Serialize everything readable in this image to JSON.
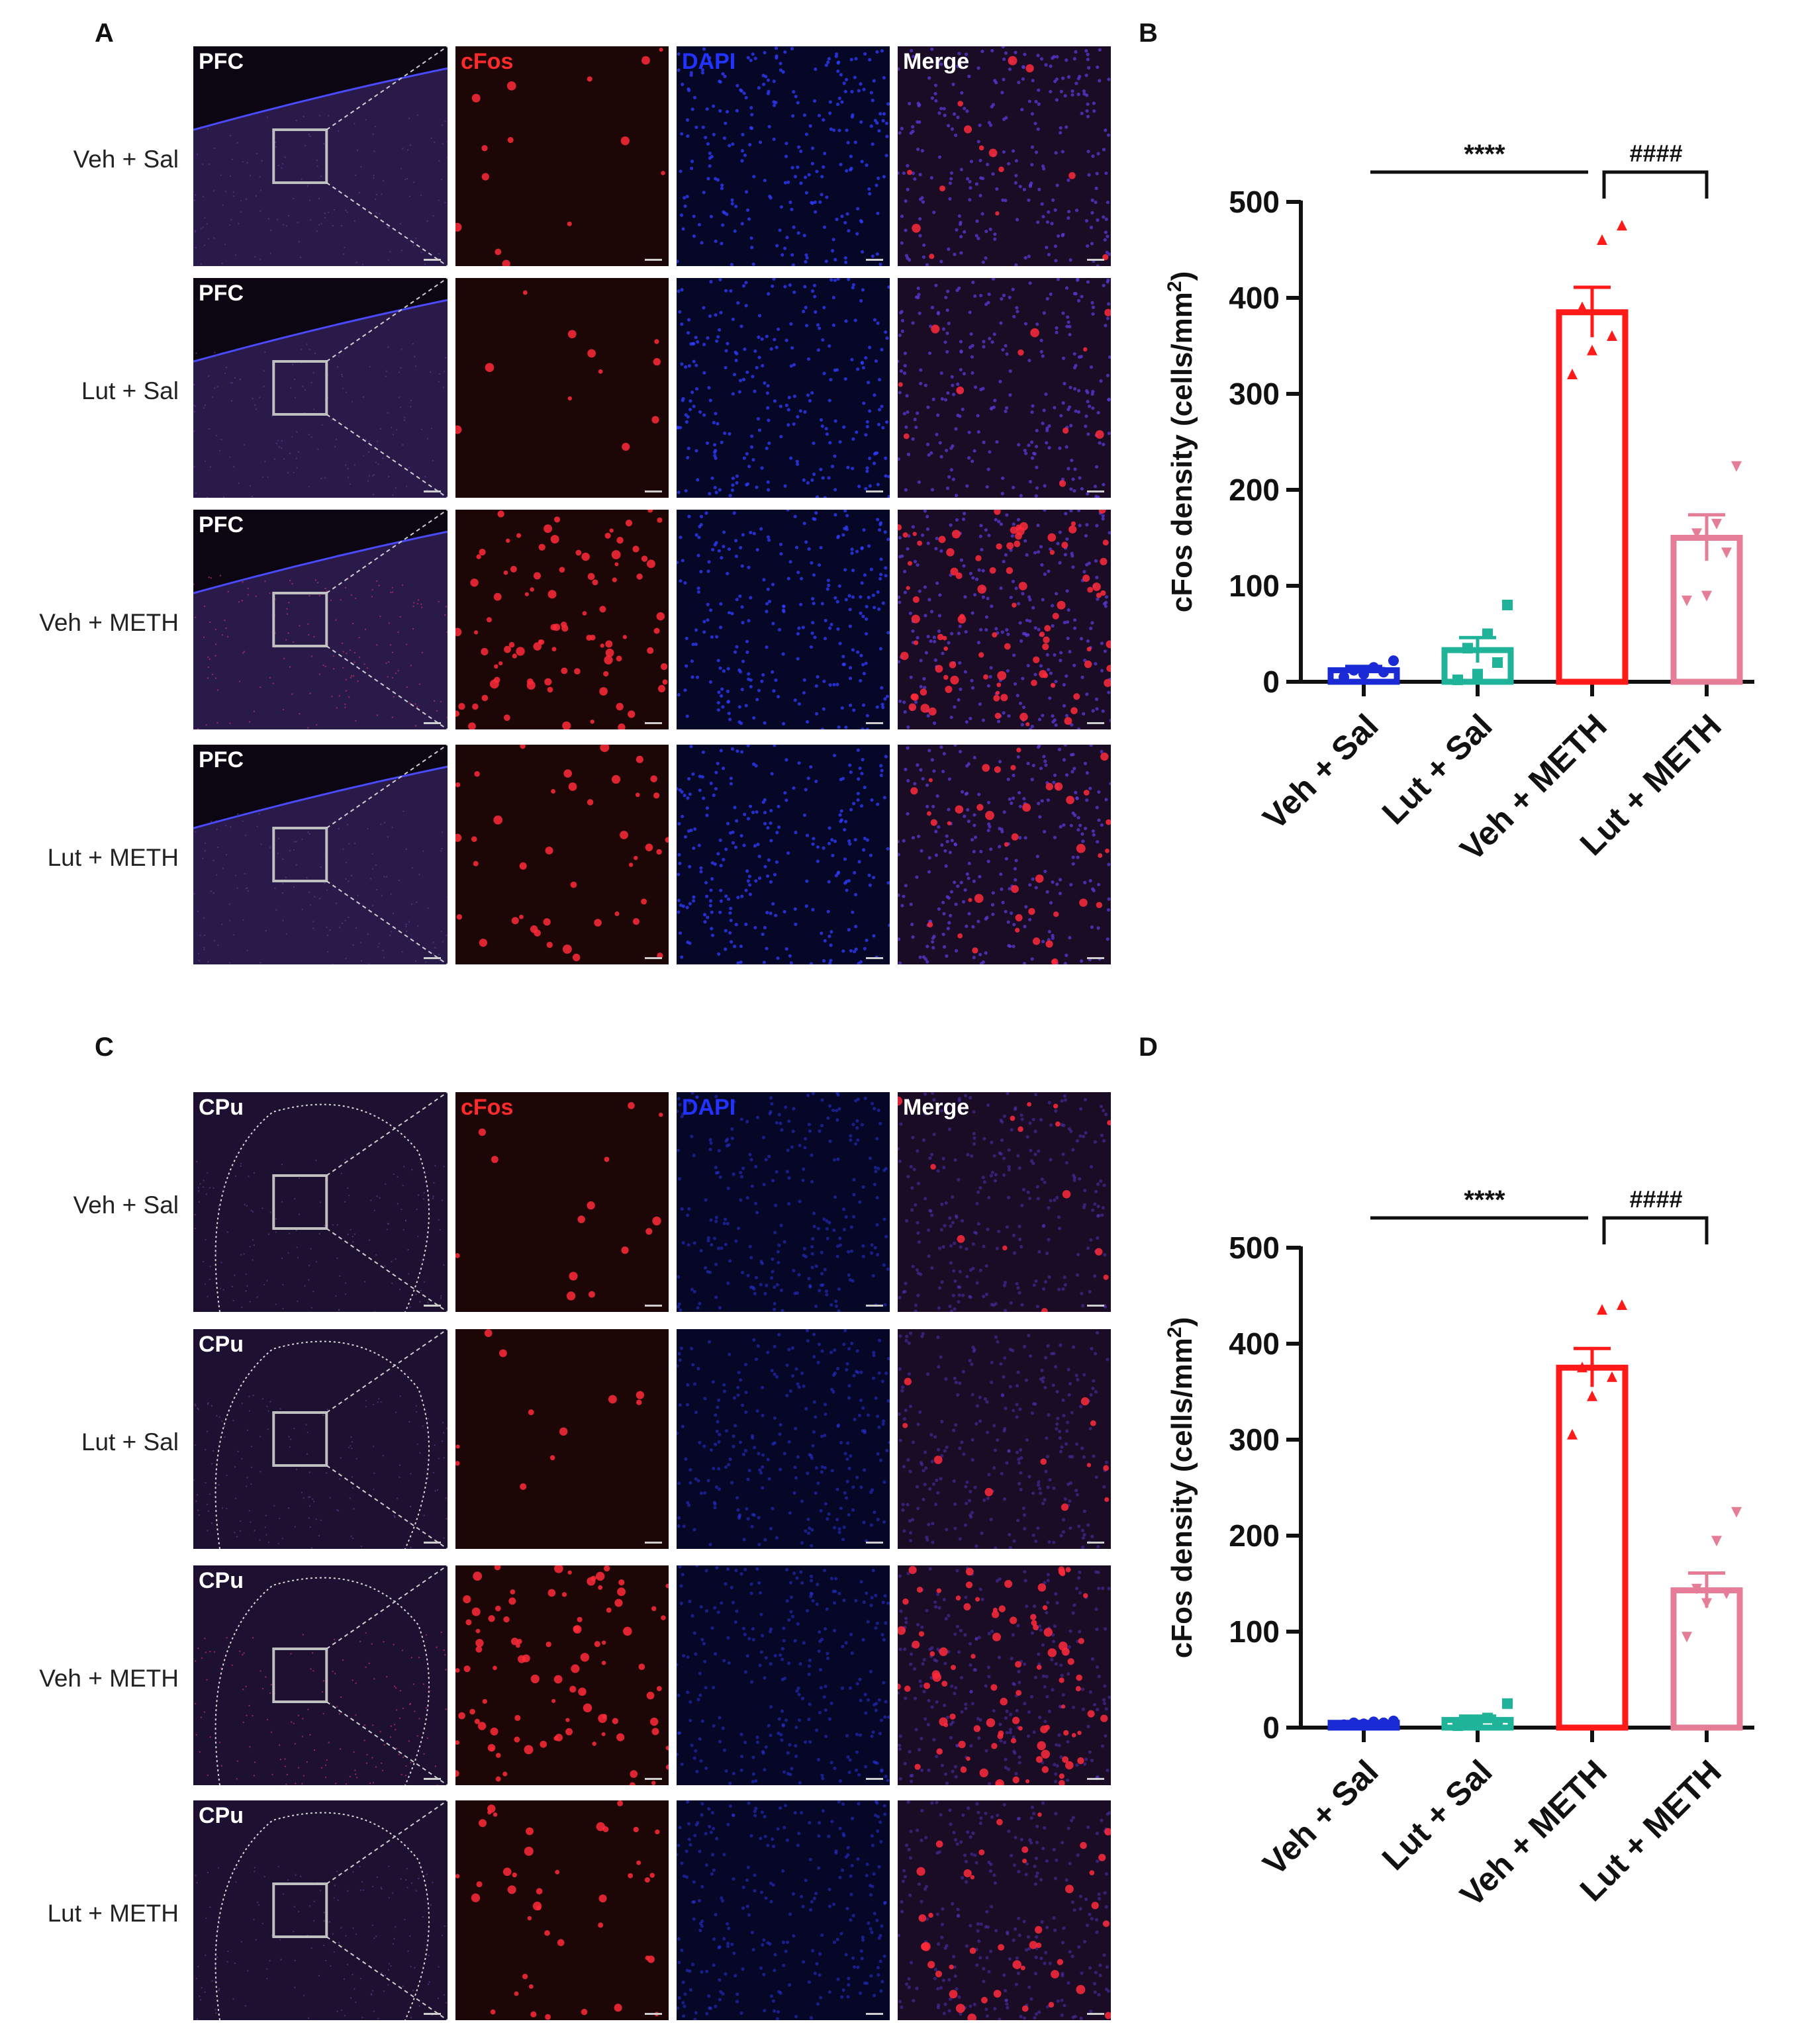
{
  "panels": {
    "A": "A",
    "B": "B",
    "C": "C",
    "D": "D"
  },
  "micrographs": {
    "A": {
      "channels": [
        "cFos",
        "DAPI",
        "Merge"
      ],
      "region": "PFC",
      "rows": [
        "Veh + Sal",
        "Lut + Sal",
        "Veh + METH",
        "Lut + METH"
      ]
    },
    "C": {
      "channels": [
        "cFos",
        "DAPI",
        "Merge"
      ],
      "region": "CPu",
      "rows": [
        "Veh + Sal",
        "Lut + Sal",
        "Veh + METH",
        "Lut + METH"
      ]
    },
    "colors": {
      "cFos_label": "#ff2a2a",
      "DAPI_label": "#2233ff",
      "Merge_label": "#ffffff",
      "region_label": "#ffffff",
      "tile_bg": "#12061a"
    }
  },
  "chart_data": [
    {
      "panel": "B",
      "type": "bar",
      "ylabel": "cFos density (cells/mm2)",
      "ylabel_main": "cFos density (cells/mm",
      "ylabel_sup": "2",
      "ylabel_tail": ")",
      "ylim": [
        0,
        500
      ],
      "yticks": [
        "0",
        "100",
        "200",
        "300",
        "400",
        "500"
      ],
      "categories": [
        "Veh + Sal",
        "Lut + Sal",
        "Veh + METH",
        "Lut + METH"
      ],
      "values": [
        12,
        33,
        385,
        150
      ],
      "sem": [
        4,
        13,
        26,
        24
      ],
      "colors": [
        "#1a2bd6",
        "#1fb39a",
        "#ff1a1a",
        "#e57d97"
      ],
      "points": [
        [
          5,
          8,
          10,
          12,
          15,
          22
        ],
        [
          2,
          8,
          20,
          35,
          50,
          80
        ],
        [
          320,
          345,
          360,
          390,
          460,
          475
        ],
        [
          85,
          90,
          135,
          155,
          165,
          225
        ]
      ],
      "markers": [
        "circle",
        "square",
        "triangle",
        "triangle-down"
      ],
      "significance": [
        {
          "label": "****",
          "from": 0,
          "to": 2,
          "style": "line"
        },
        {
          "label": "####",
          "from": 2,
          "to": 3,
          "style": "bracket"
        }
      ]
    },
    {
      "panel": "D",
      "type": "bar",
      "ylabel": "cFos density (cells/mm2)",
      "ylabel_main": "cFos density (cells/mm",
      "ylabel_sup": "2",
      "ylabel_tail": ")",
      "ylim": [
        0,
        500
      ],
      "yticks": [
        "0",
        "100",
        "200",
        "300",
        "400",
        "500"
      ],
      "categories": [
        "Veh + Sal",
        "Lut + Sal",
        "Veh + METH",
        "Lut + METH"
      ],
      "values": [
        5,
        8,
        375,
        143
      ],
      "sem": [
        1,
        4,
        20,
        18
      ],
      "colors": [
        "#1a2bd6",
        "#1fb39a",
        "#ff1a1a",
        "#e57d97"
      ],
      "points": [
        [
          3,
          4,
          5,
          5,
          6,
          7
        ],
        [
          2,
          3,
          5,
          8,
          10,
          25
        ],
        [
          305,
          345,
          365,
          375,
          435,
          440
        ],
        [
          95,
          130,
          140,
          145,
          195,
          225
        ]
      ],
      "markers": [
        "circle",
        "square",
        "triangle",
        "triangle-down"
      ],
      "significance": [
        {
          "label": "****",
          "from": 0,
          "to": 2,
          "style": "line"
        },
        {
          "label": "####",
          "from": 2,
          "to": 3,
          "style": "bracket"
        }
      ]
    }
  ]
}
